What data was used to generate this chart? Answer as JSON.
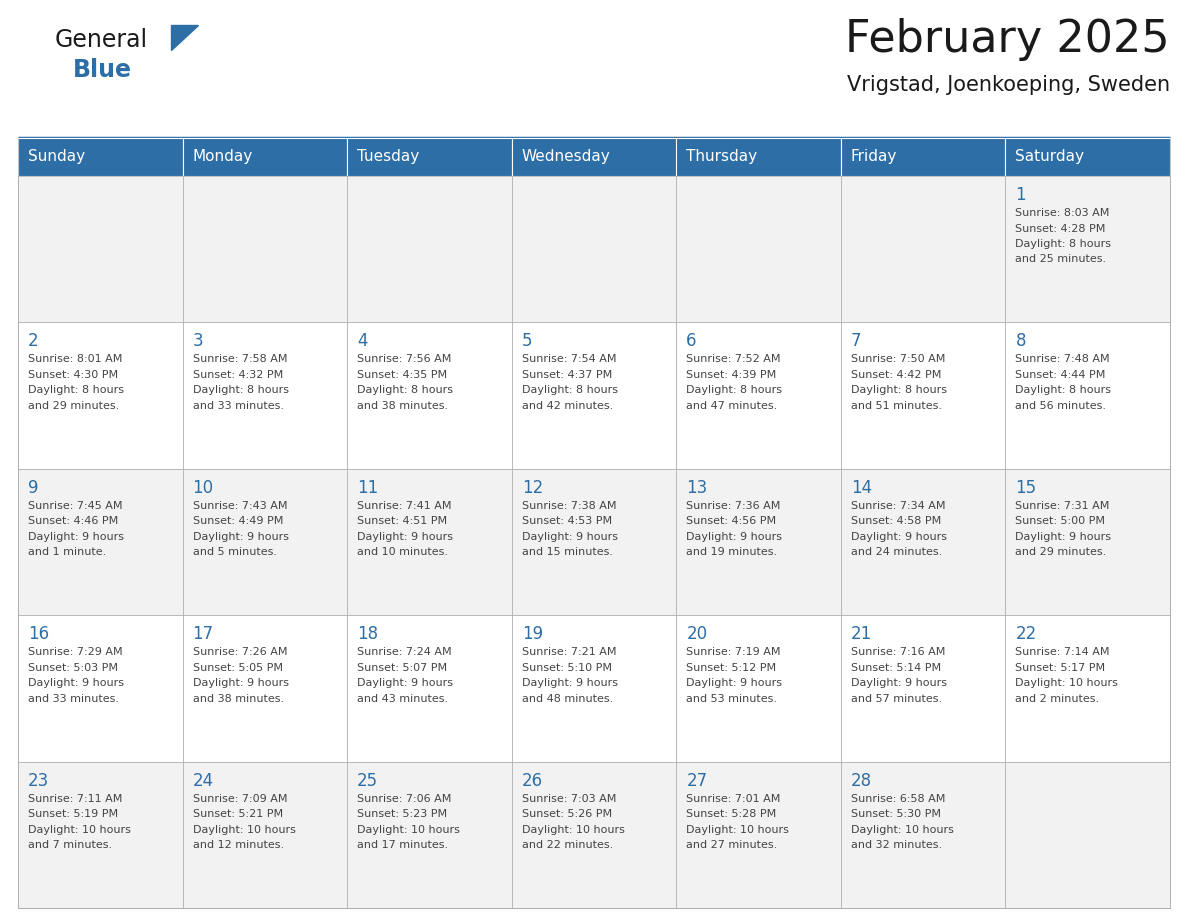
{
  "title": "February 2025",
  "subtitle": "Vrigstad, Joenkoeping, Sweden",
  "header_bg": "#2E6EA6",
  "header_text_color": "#FFFFFF",
  "cell_bg_light": "#F2F2F2",
  "cell_bg_white": "#FFFFFF",
  "cell_border_color": "#AAAAAA",
  "day_number_color": "#2E6EA6",
  "info_text_color": "#444444",
  "title_color": "#1a1a1a",
  "subtitle_color": "#1a1a1a",
  "days_of_week": [
    "Sunday",
    "Monday",
    "Tuesday",
    "Wednesday",
    "Thursday",
    "Friday",
    "Saturday"
  ],
  "weeks": [
    [
      {
        "day": null,
        "sunrise": null,
        "sunset": null,
        "daylight": null
      },
      {
        "day": null,
        "sunrise": null,
        "sunset": null,
        "daylight": null
      },
      {
        "day": null,
        "sunrise": null,
        "sunset": null,
        "daylight": null
      },
      {
        "day": null,
        "sunrise": null,
        "sunset": null,
        "daylight": null
      },
      {
        "day": null,
        "sunrise": null,
        "sunset": null,
        "daylight": null
      },
      {
        "day": null,
        "sunrise": null,
        "sunset": null,
        "daylight": null
      },
      {
        "day": 1,
        "sunrise": "8:03 AM",
        "sunset": "4:28 PM",
        "daylight_line1": "8 hours",
        "daylight_line2": "and 25 minutes."
      }
    ],
    [
      {
        "day": 2,
        "sunrise": "8:01 AM",
        "sunset": "4:30 PM",
        "daylight_line1": "8 hours",
        "daylight_line2": "and 29 minutes."
      },
      {
        "day": 3,
        "sunrise": "7:58 AM",
        "sunset": "4:32 PM",
        "daylight_line1": "8 hours",
        "daylight_line2": "and 33 minutes."
      },
      {
        "day": 4,
        "sunrise": "7:56 AM",
        "sunset": "4:35 PM",
        "daylight_line1": "8 hours",
        "daylight_line2": "and 38 minutes."
      },
      {
        "day": 5,
        "sunrise": "7:54 AM",
        "sunset": "4:37 PM",
        "daylight_line1": "8 hours",
        "daylight_line2": "and 42 minutes."
      },
      {
        "day": 6,
        "sunrise": "7:52 AM",
        "sunset": "4:39 PM",
        "daylight_line1": "8 hours",
        "daylight_line2": "and 47 minutes."
      },
      {
        "day": 7,
        "sunrise": "7:50 AM",
        "sunset": "4:42 PM",
        "daylight_line1": "8 hours",
        "daylight_line2": "and 51 minutes."
      },
      {
        "day": 8,
        "sunrise": "7:48 AM",
        "sunset": "4:44 PM",
        "daylight_line1": "8 hours",
        "daylight_line2": "and 56 minutes."
      }
    ],
    [
      {
        "day": 9,
        "sunrise": "7:45 AM",
        "sunset": "4:46 PM",
        "daylight_line1": "9 hours",
        "daylight_line2": "and 1 minute."
      },
      {
        "day": 10,
        "sunrise": "7:43 AM",
        "sunset": "4:49 PM",
        "daylight_line1": "9 hours",
        "daylight_line2": "and 5 minutes."
      },
      {
        "day": 11,
        "sunrise": "7:41 AM",
        "sunset": "4:51 PM",
        "daylight_line1": "9 hours",
        "daylight_line2": "and 10 minutes."
      },
      {
        "day": 12,
        "sunrise": "7:38 AM",
        "sunset": "4:53 PM",
        "daylight_line1": "9 hours",
        "daylight_line2": "and 15 minutes."
      },
      {
        "day": 13,
        "sunrise": "7:36 AM",
        "sunset": "4:56 PM",
        "daylight_line1": "9 hours",
        "daylight_line2": "and 19 minutes."
      },
      {
        "day": 14,
        "sunrise": "7:34 AM",
        "sunset": "4:58 PM",
        "daylight_line1": "9 hours",
        "daylight_line2": "and 24 minutes."
      },
      {
        "day": 15,
        "sunrise": "7:31 AM",
        "sunset": "5:00 PM",
        "daylight_line1": "9 hours",
        "daylight_line2": "and 29 minutes."
      }
    ],
    [
      {
        "day": 16,
        "sunrise": "7:29 AM",
        "sunset": "5:03 PM",
        "daylight_line1": "9 hours",
        "daylight_line2": "and 33 minutes."
      },
      {
        "day": 17,
        "sunrise": "7:26 AM",
        "sunset": "5:05 PM",
        "daylight_line1": "9 hours",
        "daylight_line2": "and 38 minutes."
      },
      {
        "day": 18,
        "sunrise": "7:24 AM",
        "sunset": "5:07 PM",
        "daylight_line1": "9 hours",
        "daylight_line2": "and 43 minutes."
      },
      {
        "day": 19,
        "sunrise": "7:21 AM",
        "sunset": "5:10 PM",
        "daylight_line1": "9 hours",
        "daylight_line2": "and 48 minutes."
      },
      {
        "day": 20,
        "sunrise": "7:19 AM",
        "sunset": "5:12 PM",
        "daylight_line1": "9 hours",
        "daylight_line2": "and 53 minutes."
      },
      {
        "day": 21,
        "sunrise": "7:16 AM",
        "sunset": "5:14 PM",
        "daylight_line1": "9 hours",
        "daylight_line2": "and 57 minutes."
      },
      {
        "day": 22,
        "sunrise": "7:14 AM",
        "sunset": "5:17 PM",
        "daylight_line1": "10 hours",
        "daylight_line2": "and 2 minutes."
      }
    ],
    [
      {
        "day": 23,
        "sunrise": "7:11 AM",
        "sunset": "5:19 PM",
        "daylight_line1": "10 hours",
        "daylight_line2": "and 7 minutes."
      },
      {
        "day": 24,
        "sunrise": "7:09 AM",
        "sunset": "5:21 PM",
        "daylight_line1": "10 hours",
        "daylight_line2": "and 12 minutes."
      },
      {
        "day": 25,
        "sunrise": "7:06 AM",
        "sunset": "5:23 PM",
        "daylight_line1": "10 hours",
        "daylight_line2": "and 17 minutes."
      },
      {
        "day": 26,
        "sunrise": "7:03 AM",
        "sunset": "5:26 PM",
        "daylight_line1": "10 hours",
        "daylight_line2": "and 22 minutes."
      },
      {
        "day": 27,
        "sunrise": "7:01 AM",
        "sunset": "5:28 PM",
        "daylight_line1": "10 hours",
        "daylight_line2": "and 27 minutes."
      },
      {
        "day": 28,
        "sunrise": "6:58 AM",
        "sunset": "5:30 PM",
        "daylight_line1": "10 hours",
        "daylight_line2": "and 32 minutes."
      },
      {
        "day": null,
        "sunrise": null,
        "sunset": null,
        "daylight_line1": null,
        "daylight_line2": null
      }
    ]
  ]
}
